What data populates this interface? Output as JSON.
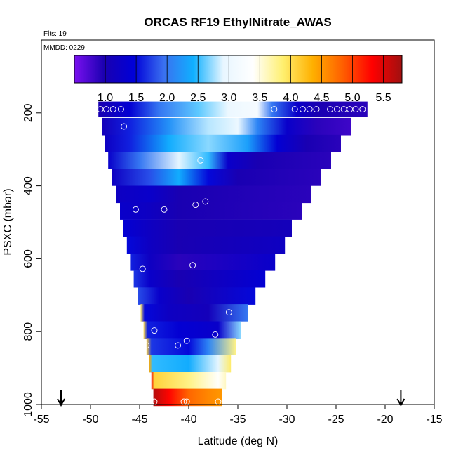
{
  "chart_data": {
    "type": "heatmap",
    "title": "ORCAS RF19 EthylNitrate_AWAS",
    "annotations": [
      "Flts: 19",
      "MMDD: 0229"
    ],
    "xlabel": "Latitude (deg N)",
    "ylabel": "PSXC (mbar)",
    "xlim": [
      -55,
      -15
    ],
    "ylim": [
      1000,
      0
    ],
    "x_ticks": [
      "-55",
      "-50",
      "-45",
      "-40",
      "-35",
      "-30",
      "-25",
      "-20",
      "-15"
    ],
    "y_ticks": [
      "200",
      "400",
      "600",
      "800",
      "1000"
    ],
    "grid": false,
    "colorbar": {
      "range": [
        0.5,
        5.8
      ],
      "ticks": [
        "1.0",
        "1.5",
        "2.0",
        "2.5",
        "3.0",
        "3.5",
        "4.0",
        "4.5",
        "5.0",
        "5.5"
      ],
      "colors": [
        "#7a10f0",
        "#1a00b0",
        "#0000d8",
        "#3a70f0",
        "#10b0ff",
        "#e8f6ff",
        "#ffffff",
        "#fff070",
        "#ffb000",
        "#ff6000",
        "#ff0000",
        "#a01010"
      ]
    },
    "arrows_at_latitude": [
      -53,
      -18.4
    ],
    "profile_rows": [
      {
        "p": 190,
        "lat_min": -49.2,
        "lat_max": -21.8,
        "segments": [
          [
            -49.2,
            1.0
          ],
          [
            -46,
            1.4
          ],
          [
            -43,
            2.0
          ],
          [
            -39,
            2.6
          ],
          [
            -36,
            3.0
          ],
          [
            -33,
            3.2
          ],
          [
            -31.5,
            2.0
          ],
          [
            -29,
            1.3
          ],
          [
            -27,
            1.0
          ],
          [
            -21.8,
            0.9
          ]
        ]
      },
      {
        "p": 237,
        "lat_min": -48.8,
        "lat_max": -23.5,
        "segments": [
          [
            -48.8,
            1.1
          ],
          [
            -46,
            1.6
          ],
          [
            -42,
            2.2
          ],
          [
            -38,
            2.8
          ],
          [
            -35,
            3.0
          ],
          [
            -33,
            2.1
          ],
          [
            -30,
            1.3
          ],
          [
            -27,
            0.9
          ],
          [
            -23.5,
            0.8
          ]
        ]
      },
      {
        "p": 283,
        "lat_min": -48.5,
        "lat_max": -24.5,
        "segments": [
          [
            -48.5,
            1.2
          ],
          [
            -46,
            1.6
          ],
          [
            -42,
            2.4
          ],
          [
            -38,
            2.7
          ],
          [
            -34,
            2.3
          ],
          [
            -31,
            1.4
          ],
          [
            -28,
            1.0
          ],
          [
            -24.5,
            0.9
          ]
        ]
      },
      {
        "p": 330,
        "lat_min": -48.2,
        "lat_max": -25.5,
        "segments": [
          [
            -48.2,
            1.3
          ],
          [
            -45,
            2.0
          ],
          [
            -41,
            2.9
          ],
          [
            -38,
            2.5
          ],
          [
            -36,
            1.3
          ],
          [
            -33,
            1.0
          ],
          [
            -25.5,
            0.9
          ]
        ]
      },
      {
        "p": 376,
        "lat_min": -47.8,
        "lat_max": -26.5,
        "segments": [
          [
            -47.8,
            1.2
          ],
          [
            -44,
            1.8
          ],
          [
            -41,
            2.4
          ],
          [
            -38,
            1.5
          ],
          [
            -35,
            1.0
          ],
          [
            -26.5,
            0.9
          ]
        ]
      },
      {
        "p": 423,
        "lat_min": -47.4,
        "lat_max": -27.5,
        "segments": [
          [
            -47.4,
            1.2
          ],
          [
            -44,
            1.3
          ],
          [
            -41,
            1.0
          ],
          [
            -27.5,
            0.9
          ]
        ]
      },
      {
        "p": 469,
        "lat_min": -47,
        "lat_max": -28.5,
        "segments": [
          [
            -47,
            1.3
          ],
          [
            -44,
            1.2
          ],
          [
            -41,
            1.0
          ],
          [
            -28.5,
            0.9
          ]
        ]
      },
      {
        "p": 516,
        "lat_min": -46.7,
        "lat_max": -29.5,
        "segments": [
          [
            -46.7,
            1.4
          ],
          [
            -44,
            1.2
          ],
          [
            -41,
            1.0
          ],
          [
            -29.5,
            1.1
          ]
        ]
      },
      {
        "p": 562,
        "lat_min": -46.3,
        "lat_max": -30.2,
        "segments": [
          [
            -46.3,
            1.5
          ],
          [
            -44,
            1.2
          ],
          [
            -41,
            1.0
          ],
          [
            -30.2,
            1.2
          ]
        ]
      },
      {
        "p": 609,
        "lat_min": -45.9,
        "lat_max": -31.2,
        "segments": [
          [
            -45.9,
            1.6
          ],
          [
            -44,
            1.2
          ],
          [
            -41,
            0.9
          ],
          [
            -31.2,
            1.3
          ]
        ]
      },
      {
        "p": 655,
        "lat_min": -45.6,
        "lat_max": -32.2,
        "segments": [
          [
            -45.6,
            1.7
          ],
          [
            -44,
            1.3
          ],
          [
            -41,
            1.0
          ],
          [
            -32.2,
            1.4
          ]
        ]
      },
      {
        "p": 702,
        "lat_min": -45.2,
        "lat_max": -33.2,
        "segments": [
          [
            -45.2,
            1.8
          ],
          [
            -43,
            1.3
          ],
          [
            -40,
            1.0
          ],
          [
            -33.2,
            1.5
          ]
        ]
      },
      {
        "p": 748,
        "lat_min": -44.9,
        "lat_max": -34,
        "segments": [
          [
            -44.9,
            3.9
          ],
          [
            -44.5,
            1.5
          ],
          [
            -42,
            1.2
          ],
          [
            -38,
            1.1
          ],
          [
            -34,
            2.0
          ]
        ]
      },
      {
        "p": 795,
        "lat_min": -44.6,
        "lat_max": -34.7,
        "segments": [
          [
            -44.6,
            4.0
          ],
          [
            -44.2,
            1.6
          ],
          [
            -41,
            1.4
          ],
          [
            -37,
            1.3
          ],
          [
            -34.7,
            2.7
          ]
        ]
      },
      {
        "p": 841,
        "lat_min": -44.3,
        "lat_max": -35.2,
        "segments": [
          [
            -44.3,
            4.1
          ],
          [
            -43.8,
            1.7
          ],
          [
            -40,
            1.5
          ],
          [
            -38,
            2.1
          ],
          [
            -35.2,
            3.8
          ]
        ]
      },
      {
        "p": 888,
        "lat_min": -44,
        "lat_max": -35.7,
        "segments": [
          [
            -44,
            4.4
          ],
          [
            -43.7,
            2.5
          ],
          [
            -40,
            2.4
          ],
          [
            -37,
            2.9
          ],
          [
            -35.7,
            3.9
          ]
        ]
      },
      {
        "p": 934,
        "lat_min": -43.8,
        "lat_max": -36.2,
        "segments": [
          [
            -43.8,
            5.4
          ],
          [
            -43.5,
            4.1
          ],
          [
            -40,
            3.8
          ],
          [
            -37,
            3.4
          ],
          [
            -36.2,
            3.6
          ]
        ]
      },
      {
        "p": 980,
        "lat_min": -43.6,
        "lat_max": -36.6,
        "segments": [
          [
            -43.6,
            5.7
          ],
          [
            -42,
            5.3
          ],
          [
            -40,
            4.8
          ],
          [
            -38,
            4.6
          ],
          [
            -36.6,
            4.5
          ]
        ]
      }
    ],
    "sample_points": [
      {
        "lat": -49.0,
        "p": 190
      },
      {
        "lat": -48.4,
        "p": 190
      },
      {
        "lat": -47.7,
        "p": 190
      },
      {
        "lat": -46.9,
        "p": 190
      },
      {
        "lat": -31.3,
        "p": 190
      },
      {
        "lat": -29.2,
        "p": 190
      },
      {
        "lat": -28.4,
        "p": 190
      },
      {
        "lat": -27.7,
        "p": 190
      },
      {
        "lat": -27.0,
        "p": 190
      },
      {
        "lat": -25.6,
        "p": 190
      },
      {
        "lat": -24.9,
        "p": 190
      },
      {
        "lat": -24.2,
        "p": 190
      },
      {
        "lat": -23.6,
        "p": 190
      },
      {
        "lat": -23.0,
        "p": 190
      },
      {
        "lat": -22.3,
        "p": 190
      },
      {
        "lat": -46.6,
        "p": 237
      },
      {
        "lat": -38.8,
        "p": 330
      },
      {
        "lat": -45.4,
        "p": 465
      },
      {
        "lat": -42.5,
        "p": 465
      },
      {
        "lat": -39.3,
        "p": 452
      },
      {
        "lat": -38.3,
        "p": 443
      },
      {
        "lat": -44.7,
        "p": 628
      },
      {
        "lat": -39.6,
        "p": 618
      },
      {
        "lat": -35.9,
        "p": 747
      },
      {
        "lat": -44.3,
        "p": 838
      },
      {
        "lat": -43.5,
        "p": 797
      },
      {
        "lat": -41.1,
        "p": 838
      },
      {
        "lat": -40.2,
        "p": 825
      },
      {
        "lat": -37.3,
        "p": 808
      },
      {
        "lat": -43.8,
        "p": 1000
      },
      {
        "lat": -43.5,
        "p": 1000
      },
      {
        "lat": -40.5,
        "p": 1000
      },
      {
        "lat": -40.2,
        "p": 1000
      },
      {
        "lat": -37.0,
        "p": 1000
      }
    ]
  }
}
